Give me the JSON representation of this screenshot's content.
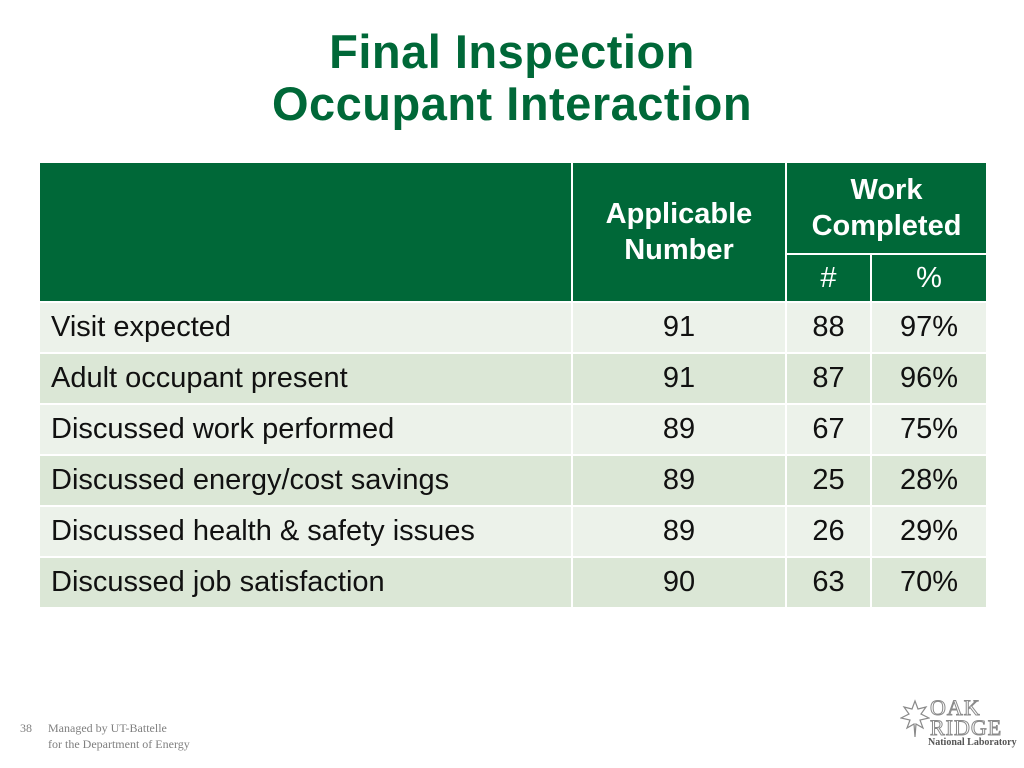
{
  "slide": {
    "title_line1": "Final Inspection",
    "title_line2": "Occupant Interaction"
  },
  "table": {
    "header": {
      "applicable_line1": "Applicable",
      "applicable_line2": "Number",
      "work_line1": "Work",
      "work_line2": "Completed",
      "count": "#",
      "percent": "%"
    },
    "rows": [
      {
        "label": "Visit expected",
        "applicable": "91",
        "count": "88",
        "percent": "97%"
      },
      {
        "label": "Adult occupant present",
        "applicable": "91",
        "count": "87",
        "percent": "96%"
      },
      {
        "label": "Discussed work performed",
        "applicable": "89",
        "count": "67",
        "percent": "75%"
      },
      {
        "label": "Discussed energy/cost savings",
        "applicable": "89",
        "count": "25",
        "percent": "28%"
      },
      {
        "label": "Discussed health & safety issues",
        "applicable": "89",
        "count": "26",
        "percent": "29%"
      },
      {
        "label": "Discussed job satisfaction",
        "applicable": "90",
        "count": "63",
        "percent": "70%"
      }
    ]
  },
  "footer": {
    "page_number": "38",
    "line1": "Managed by UT-Battelle",
    "line2": "for the Department of Energy"
  },
  "logo": {
    "word1": "OAK",
    "word2": "RIDGE",
    "word3": "National Laboratory"
  },
  "colors": {
    "brand_green": "#006838",
    "row_light": "#ecf2ea",
    "row_dark": "#dbe7d6"
  }
}
